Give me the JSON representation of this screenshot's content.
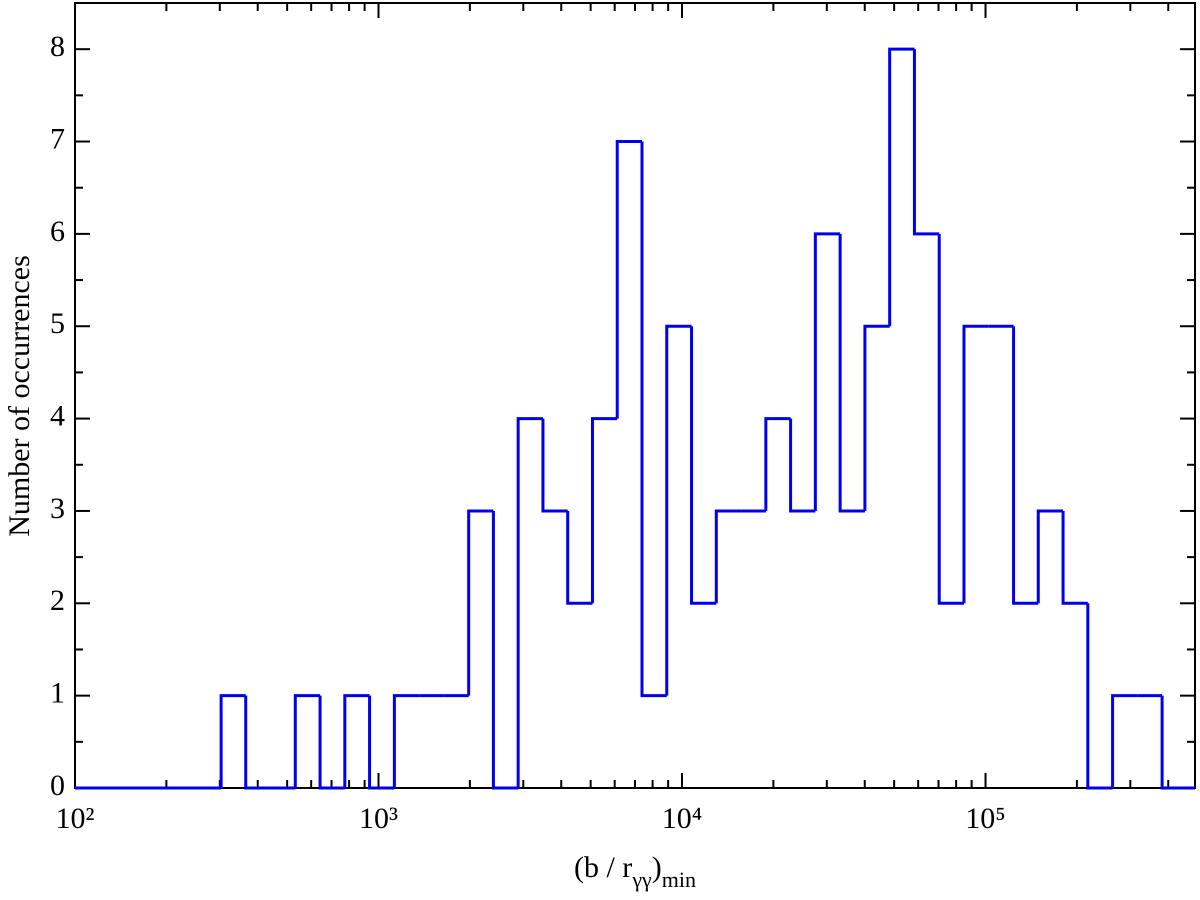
{
  "chart_data": {
    "type": "histogram",
    "xlabel": [
      "(b / r",
      "γγ",
      ")",
      "min"
    ],
    "ylabel": "Number of occurrences",
    "bins": [
      100,
      303,
      365.2,
      440.8,
      531.9,
      641.9,
      774.5,
      934.5,
      1128,
      1361,
      1642,
      1982,
      2391,
      2885,
      3482,
      4201,
      5070,
      6117,
      7382,
      8907,
      10750,
      12970,
      15650,
      18890,
      22790,
      27500,
      33190,
      40050,
      48330,
      58320,
      70380,
      84920,
      102500,
      123700,
      149200,
      180100,
      217300,
      262200,
      316400,
      381800,
      490000
    ],
    "counts": [
      0,
      1,
      0,
      0,
      1,
      0,
      1,
      0,
      1,
      1,
      1,
      3,
      0,
      4,
      3,
      2,
      4,
      7,
      1,
      5,
      2,
      3,
      3,
      4,
      3,
      6,
      3,
      5,
      8,
      6,
      2,
      5,
      5,
      2,
      3,
      2,
      0,
      1,
      1,
      0
    ],
    "color": "#0000ee",
    "xscale": "log",
    "xlim": [
      100,
      490000
    ],
    "ylim": [
      0,
      8.5
    ],
    "xticks": [
      {
        "value": 100,
        "label": "10²"
      },
      {
        "value": 1000,
        "label": "10³"
      },
      {
        "value": 10000,
        "label": "10⁴"
      },
      {
        "value": 100000,
        "label": "10⁵"
      }
    ],
    "xminorticks": [
      200,
      300,
      400,
      500,
      600,
      700,
      800,
      900,
      2000,
      3000,
      4000,
      5000,
      6000,
      7000,
      8000,
      9000,
      20000,
      30000,
      40000,
      50000,
      60000,
      70000,
      80000,
      90000,
      200000,
      300000,
      400000
    ],
    "yticks": [
      0,
      1,
      2,
      3,
      4,
      5,
      6,
      7,
      8
    ],
    "yminorticks": [
      0.5,
      1.5,
      2.5,
      3.5,
      4.5,
      5.5,
      6.5,
      7.5
    ]
  }
}
